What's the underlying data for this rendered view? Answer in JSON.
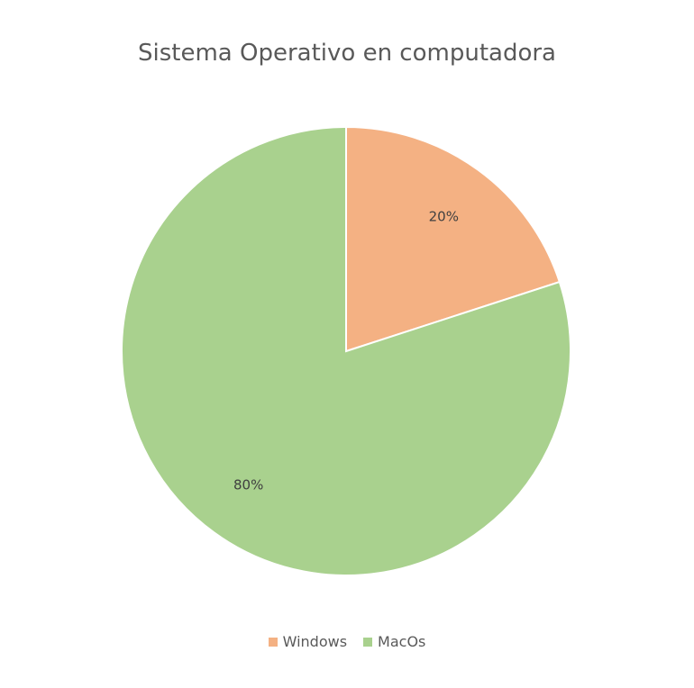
{
  "chart_data": {
    "type": "pie",
    "title": "Sistema Operativo en computadora",
    "categories": [
      "Windows",
      "MacOs"
    ],
    "values": [
      20,
      80
    ],
    "labels": [
      "20%",
      "80%"
    ],
    "colors": [
      "#F4B183",
      "#A9D18E"
    ],
    "legend_position": "bottom"
  }
}
